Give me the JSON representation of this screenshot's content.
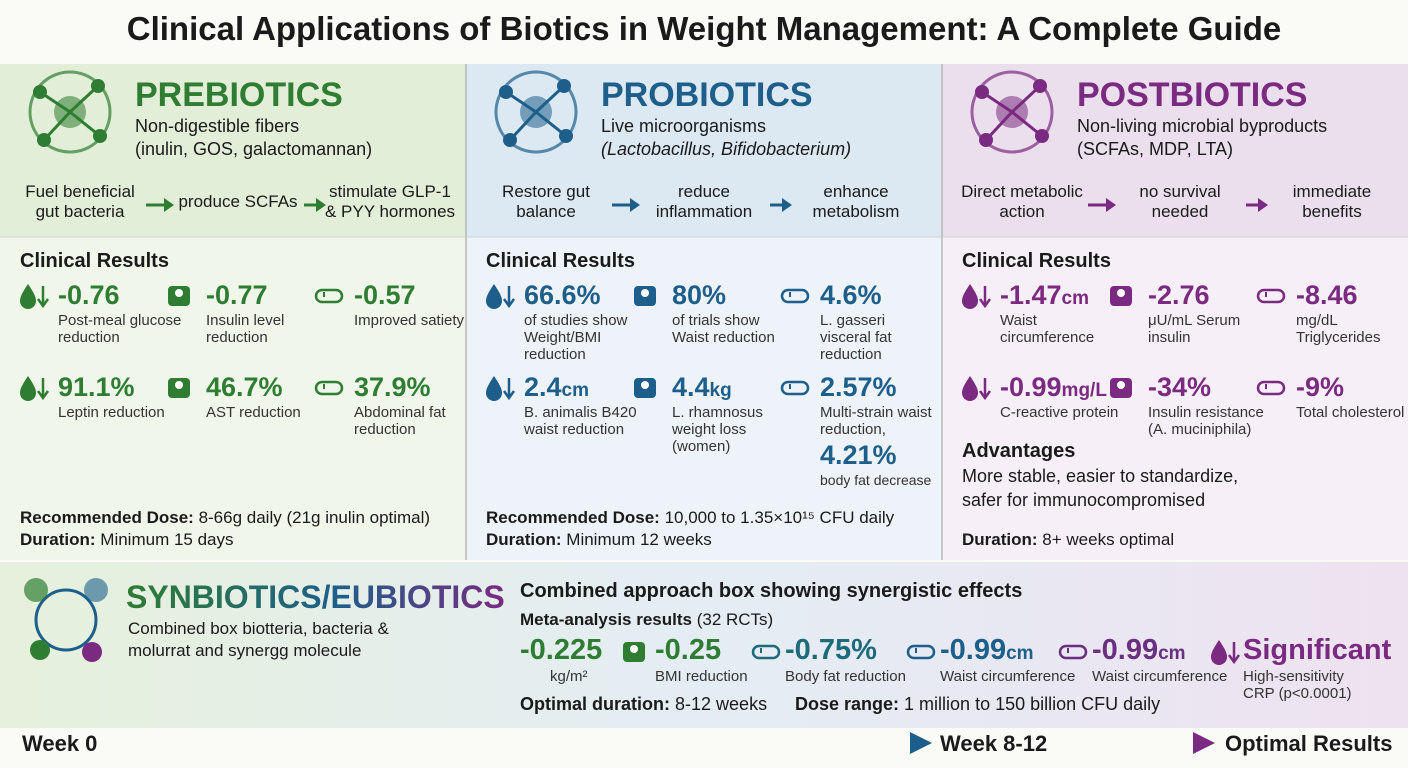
{
  "title": "Clinical Applications of Biotics in Weight Management: A Complete Guide",
  "panels": [
    {
      "name": "PREBIOTICS",
      "description": [
        "Non-digestible fibers",
        "(inulin, GOS, galactomannan)"
      ],
      "flow": [
        "Fuel beneficial gut bacteria",
        "produce SCFAs",
        "stimulate GLP-1 & PYY hormones"
      ],
      "results_heading": "Clinical Results",
      "results": [
        {
          "value": "-0.76",
          "label": "Post-meal glucose reduction"
        },
        {
          "value": "-0.77",
          "label": "Insulin level reduction"
        },
        {
          "value": "-0.57",
          "label": "Improved satiety"
        },
        {
          "value": "91.1%",
          "label": "Leptin reduction"
        },
        {
          "value": "46.7%",
          "label": "AST reduction"
        },
        {
          "value": "37.9%",
          "label": "Abdominal fat reduction"
        }
      ],
      "notes": [
        {
          "label": "Recommended Dose:",
          "text": "8-66g daily (21g inulin optimal)"
        },
        {
          "label": "Duration:",
          "text": "Minimum 15 days"
        }
      ]
    },
    {
      "name": "PROBIOTICS",
      "description": [
        "Live microorganisms",
        "(Lactobacillus, Bifidobacterium)"
      ],
      "flow": [
        "Restore gut balance",
        "reduce inflammation",
        "enhance metabolism"
      ],
      "results_heading": "Clinical Results",
      "results": [
        {
          "value": "66.6%",
          "label": "of studies show Weight/BMI reduction"
        },
        {
          "value": "80%",
          "label": "of trials show Waist reduction"
        },
        {
          "value": "4.6%",
          "label": "L. gasseri visceral fat reduction"
        },
        {
          "value": "2.4",
          "unit": "cm",
          "label": "B. animalis B420 waist reduction"
        },
        {
          "value": "4.4",
          "unit": "kg",
          "label": "L. rhamnosus weight loss (women)"
        },
        {
          "value": "2.57%",
          "label": "Multi-strain waist reduction,",
          "extra": {
            "value": "4.21%",
            "label": "body fat decrease"
          }
        }
      ],
      "notes": [
        {
          "label": "Recommended Dose:",
          "text": "10,000 to 1.35×10¹⁵ CFU daily"
        },
        {
          "label": "Duration:",
          "text": "Minimum 12 weeks"
        }
      ]
    },
    {
      "name": "POSTBIOTICS",
      "description": [
        "Non-living microbial byproducts",
        "(SCFAs, MDP, LTA)"
      ],
      "flow": [
        "Direct metabolic action",
        "no survival needed",
        "immediate benefits"
      ],
      "results_heading": "Clinical Results",
      "results": [
        {
          "value": "-1.47",
          "unit": "cm",
          "label": "Waist circumference"
        },
        {
          "value": "-2.76",
          "label": "μU/mL Serum insulin"
        },
        {
          "value": "-8.46",
          "label": "mg/dL Triglycerides"
        },
        {
          "value": "-0.99",
          "unit": "mg/L",
          "label": "C-reactive protein"
        },
        {
          "value": "-34%",
          "label": "Insulin resistance (A. muciniphila)"
        },
        {
          "value": "-9%",
          "label": "Total cholesterol"
        }
      ],
      "advantages": {
        "heading": "Advantages",
        "text": "More stable, easier to standardize, safer for immunocompromised"
      },
      "notes": [
        {
          "label": "Duration:",
          "text": "8+ weeks optimal"
        }
      ]
    }
  ],
  "synbiotics": {
    "name": "SYNBIOTICS/EUBIOTICS",
    "description": "Combined box biotteria, bacteria & molurrat and synergg molecule",
    "heading": "Combined approach box showing synergistic effects",
    "meta_label": "Meta-analysis results",
    "meta_note": "(32 RCTs)",
    "results": [
      {
        "value": "-0.225",
        "label": "kg/m²"
      },
      {
        "value": "-0.25",
        "label": "BMI reduction"
      },
      {
        "value": "-0.75%",
        "label": "Body fat reduction"
      },
      {
        "value": "-0.99",
        "unit": "cm",
        "label": "Waist circumference"
      },
      {
        "value": "-0.99",
        "unit": "cm",
        "label": "Waist circumference"
      },
      {
        "value": "Significant",
        "label": "High-sensitivity CRP (p<0.0001)"
      }
    ],
    "notes": [
      {
        "label": "Optimal duration:",
        "text": "8-12 weeks"
      },
      {
        "label": "Dose range:",
        "text": "1 million to 150 billion CFU daily"
      }
    ]
  },
  "timeline": [
    "Week 0",
    "Week 8-12",
    "Optimal Results"
  ]
}
